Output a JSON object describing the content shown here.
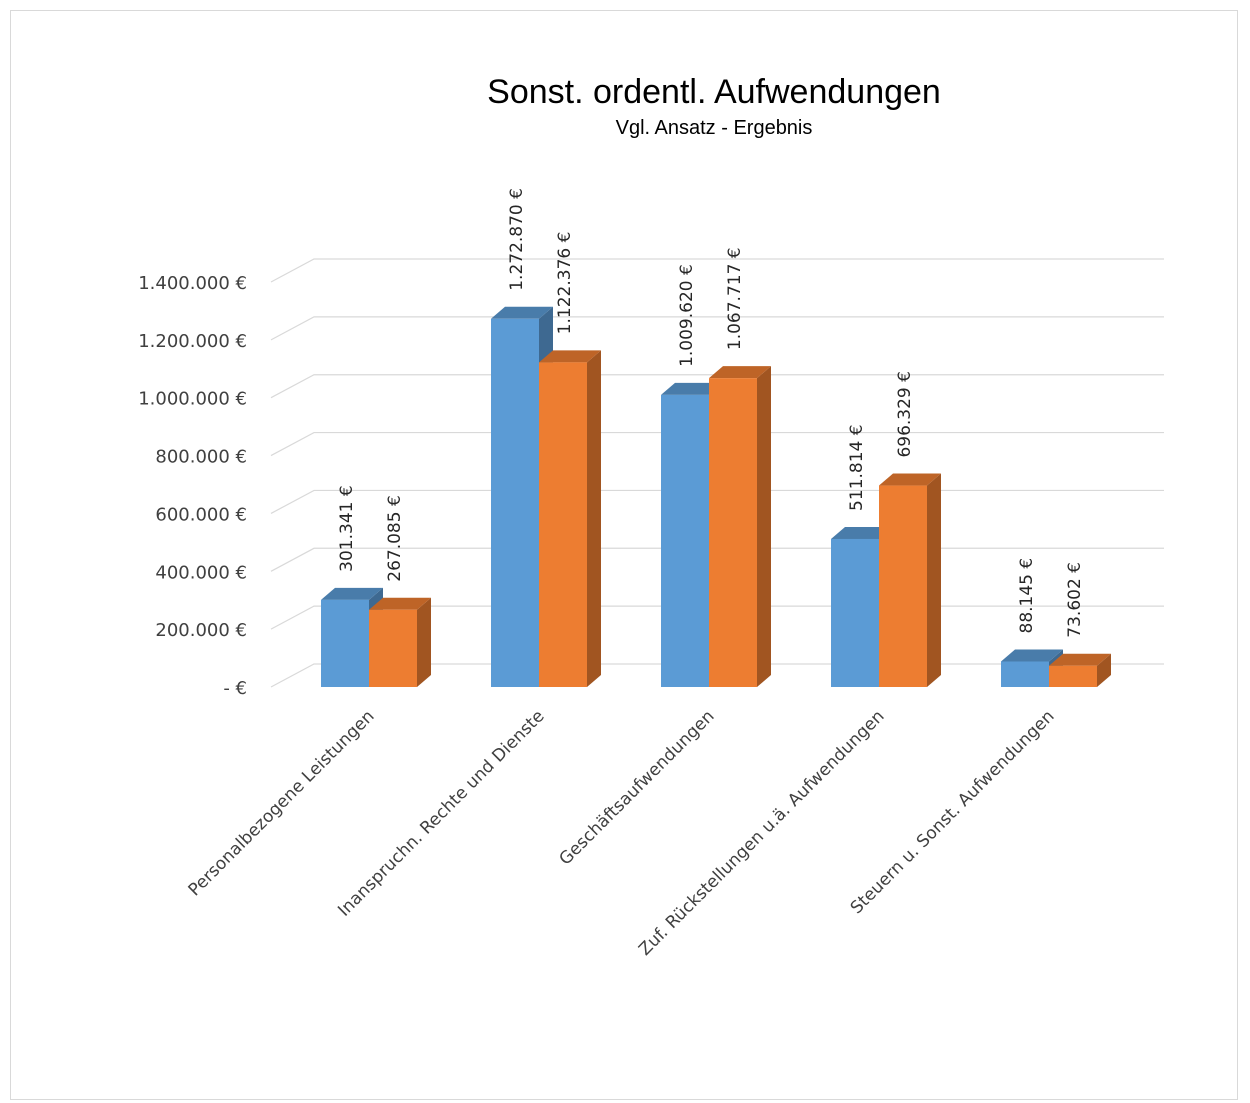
{
  "chart_data": {
    "type": "bar",
    "title": "Sonst. ordentl. Aufwendungen",
    "subtitle": "Vgl. Ansatz - Ergebnis",
    "categories": [
      "Personalbezogene Leistungen",
      "Inanspruchn. Rechte und Dienste",
      "Geschäftsaufwendungen",
      "Zuf. Rückstellungen u.ä. Aufwendungen",
      "Steuern u. Sonst. Aufwendungen"
    ],
    "series": [
      {
        "values": [
          301341,
          1272870,
          1009620,
          511814,
          88145
        ],
        "labels": [
          "301.341 €",
          "1.272.870 €",
          "1.009.620 €",
          "511.814 €",
          "88.145 €"
        ],
        "color": "#5b9bd5"
      },
      {
        "values": [
          267085,
          1122376,
          1067717,
          696329,
          73602
        ],
        "labels": [
          "267.085 €",
          "1.122.376 €",
          "1.067.717 €",
          "696.329 €",
          "73.602 €"
        ],
        "color": "#ed7d31"
      }
    ],
    "y_ticks": [
      0,
      200000,
      400000,
      600000,
      800000,
      1000000,
      1200000,
      1400000
    ],
    "y_tick_labels": [
      "-  €",
      "200.000 €",
      "400.000 €",
      "600.000 €",
      "800.000 €",
      "1.000.000 €",
      "1.200.000 €",
      "1.400.000 €"
    ],
    "ylim": [
      0,
      1400000
    ],
    "grid": true,
    "legend": "none",
    "style": "3d-clustered-column"
  }
}
